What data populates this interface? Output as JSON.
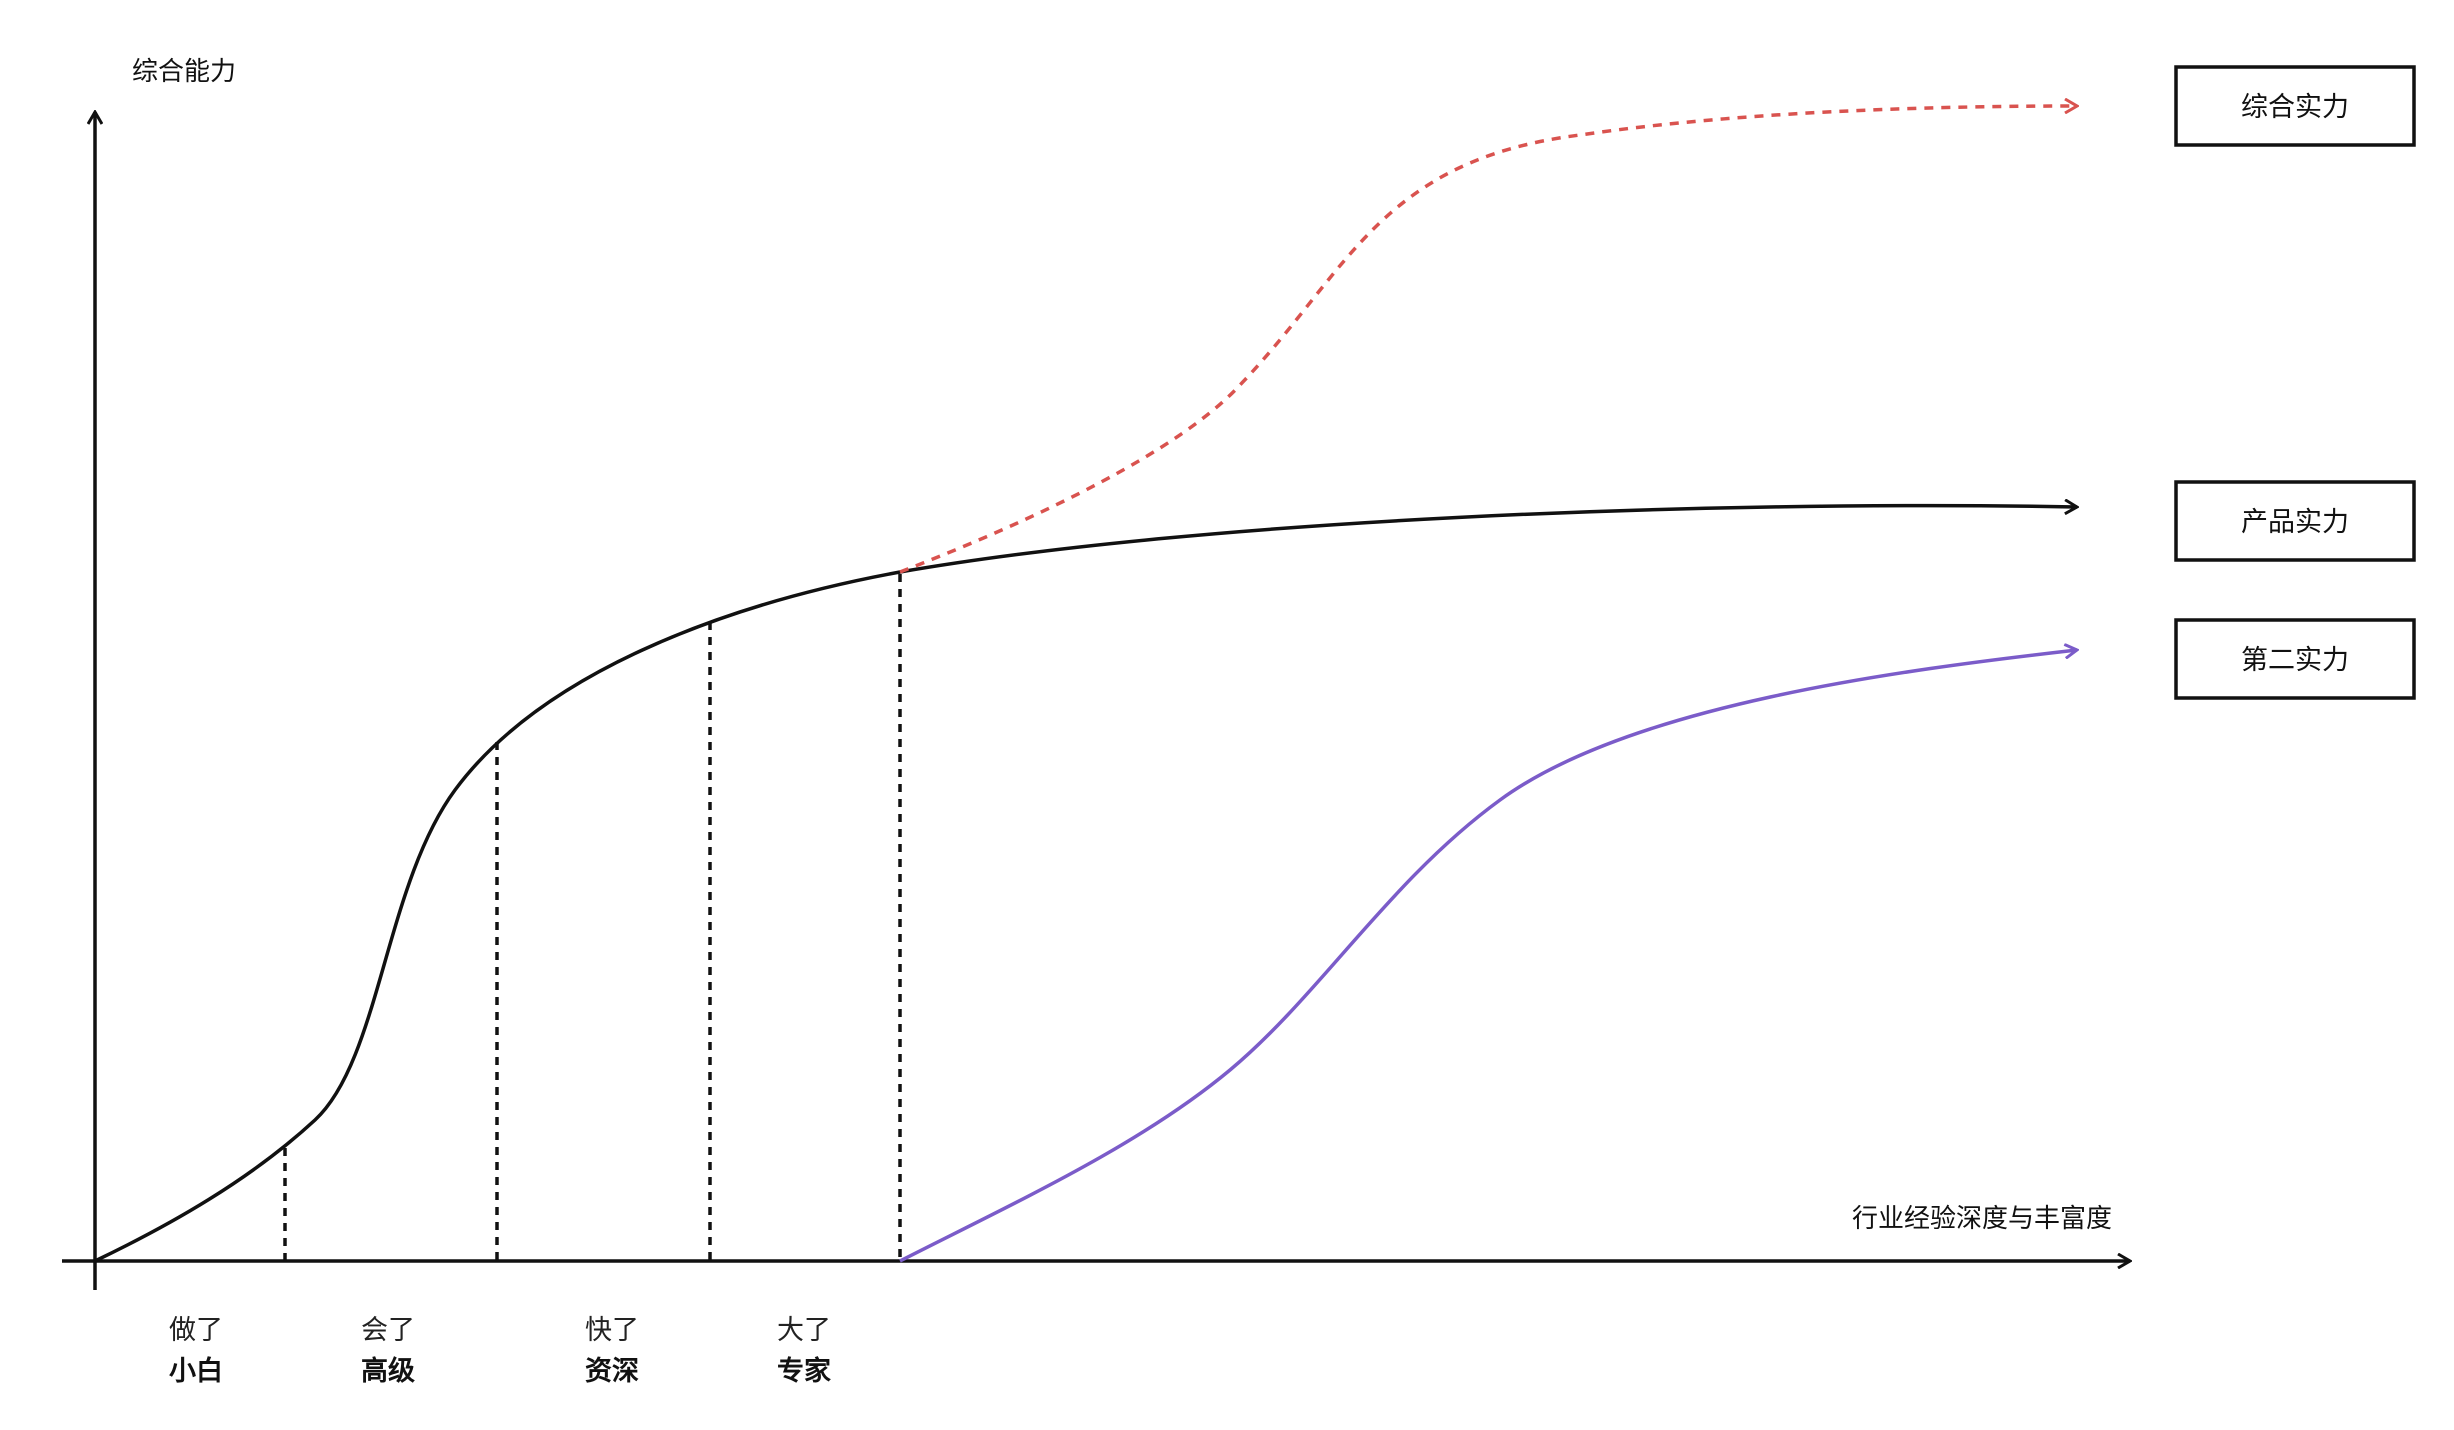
{
  "axes": {
    "y_label": "综合能力",
    "x_label": "行业经验深度与丰富度"
  },
  "stages": [
    {
      "top": "做了",
      "bottom": "小白"
    },
    {
      "top": "会了",
      "bottom": "高级"
    },
    {
      "top": "快了",
      "bottom": "资深"
    },
    {
      "top": "大了",
      "bottom": "专家"
    }
  ],
  "curves": [
    {
      "label": "综合实力",
      "color": "#d9534f",
      "style": "dashed"
    },
    {
      "label": "产品实力",
      "color": "#111111",
      "style": "solid"
    },
    {
      "label": "第二实力",
      "color": "#7b5cc9",
      "style": "solid"
    }
  ]
}
